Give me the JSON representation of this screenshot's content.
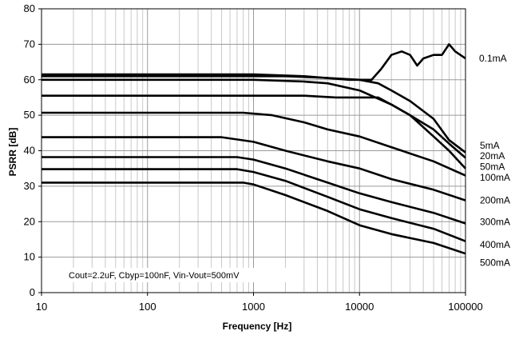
{
  "chart_data": {
    "type": "line",
    "xlabel": "Frequency [Hz]",
    "ylabel": "PSRR [dB]",
    "xscale": "log",
    "xlim": [
      10,
      100000
    ],
    "ylim": [
      0,
      80
    ],
    "xticks": [
      "10",
      "100",
      "1000",
      "10000",
      "100000"
    ],
    "yticks": [
      "0",
      "10",
      "20",
      "30",
      "40",
      "50",
      "60",
      "70",
      "80"
    ],
    "grid": true,
    "annotation": "Cout=2.2uF, Cbyp=100nF, Vin-Vout=500mV",
    "series_labels": [
      "0.1mA",
      "5mA",
      "20mA",
      "50mA",
      "100mA",
      "200mA",
      "300mA",
      "400mA",
      "500mA"
    ],
    "series": [
      {
        "name": "0.1mA",
        "points": [
          [
            10,
            61.5
          ],
          [
            1000,
            61.5
          ],
          [
            3000,
            61
          ],
          [
            8000,
            60
          ],
          [
            13000,
            60
          ],
          [
            16000,
            63
          ],
          [
            20000,
            67
          ],
          [
            25000,
            68
          ],
          [
            30000,
            67
          ],
          [
            35000,
            64
          ],
          [
            40000,
            66
          ],
          [
            50000,
            67
          ],
          [
            60000,
            67
          ],
          [
            70000,
            70
          ],
          [
            80000,
            68
          ],
          [
            100000,
            66
          ]
        ]
      },
      {
        "name": "5mA",
        "points": [
          [
            10,
            61
          ],
          [
            2000,
            61
          ],
          [
            5000,
            60.5
          ],
          [
            10000,
            60
          ],
          [
            15000,
            59
          ],
          [
            20000,
            57
          ],
          [
            30000,
            54
          ],
          [
            50000,
            49
          ],
          [
            70000,
            43
          ],
          [
            100000,
            39.5
          ]
        ]
      },
      {
        "name": "20mA",
        "points": [
          [
            10,
            60
          ],
          [
            1000,
            60
          ],
          [
            3000,
            59.5
          ],
          [
            5000,
            59
          ],
          [
            10000,
            57
          ],
          [
            20000,
            53
          ],
          [
            30000,
            50
          ],
          [
            50000,
            46
          ],
          [
            70000,
            42
          ],
          [
            100000,
            38
          ]
        ]
      },
      {
        "name": "50mA",
        "points": [
          [
            10,
            55.5
          ],
          [
            3000,
            55.5
          ],
          [
            6000,
            55
          ],
          [
            10000,
            55
          ],
          [
            15000,
            55
          ],
          [
            20000,
            53
          ],
          [
            30000,
            50
          ],
          [
            50000,
            44
          ],
          [
            70000,
            40
          ],
          [
            100000,
            35
          ]
        ]
      },
      {
        "name": "100mA",
        "points": [
          [
            10,
            50.7
          ],
          [
            800,
            50.7
          ],
          [
            1500,
            50
          ],
          [
            3000,
            48
          ],
          [
            5000,
            46
          ],
          [
            10000,
            44
          ],
          [
            20000,
            41
          ],
          [
            50000,
            37
          ],
          [
            100000,
            33
          ]
        ]
      },
      {
        "name": "200mA",
        "points": [
          [
            10,
            43.8
          ],
          [
            500,
            43.8
          ],
          [
            1000,
            42.5
          ],
          [
            2000,
            40
          ],
          [
            5000,
            37
          ],
          [
            10000,
            35
          ],
          [
            20000,
            32
          ],
          [
            50000,
            29
          ],
          [
            100000,
            26
          ]
        ]
      },
      {
        "name": "300mA",
        "points": [
          [
            10,
            38.2
          ],
          [
            700,
            38.2
          ],
          [
            1000,
            37.5
          ],
          [
            2000,
            35
          ],
          [
            5000,
            31
          ],
          [
            10000,
            28
          ],
          [
            20000,
            25.5
          ],
          [
            50000,
            22.5
          ],
          [
            100000,
            19.5
          ]
        ]
      },
      {
        "name": "400mA",
        "points": [
          [
            10,
            34.8
          ],
          [
            700,
            34.8
          ],
          [
            1000,
            34
          ],
          [
            2000,
            31.5
          ],
          [
            5000,
            27
          ],
          [
            10000,
            23.5
          ],
          [
            20000,
            21
          ],
          [
            50000,
            18
          ],
          [
            100000,
            14.5
          ]
        ]
      },
      {
        "name": "500mA",
        "points": [
          [
            10,
            31
          ],
          [
            800,
            31
          ],
          [
            1000,
            30.5
          ],
          [
            2000,
            27.5
          ],
          [
            5000,
            23
          ],
          [
            10000,
            19
          ],
          [
            20000,
            16.5
          ],
          [
            50000,
            14
          ],
          [
            100000,
            11
          ]
        ]
      }
    ],
    "label_positions_db": [
      66,
      41.5,
      38.5,
      35.5,
      32.5,
      26,
      20,
      13.5,
      8.5
    ]
  }
}
